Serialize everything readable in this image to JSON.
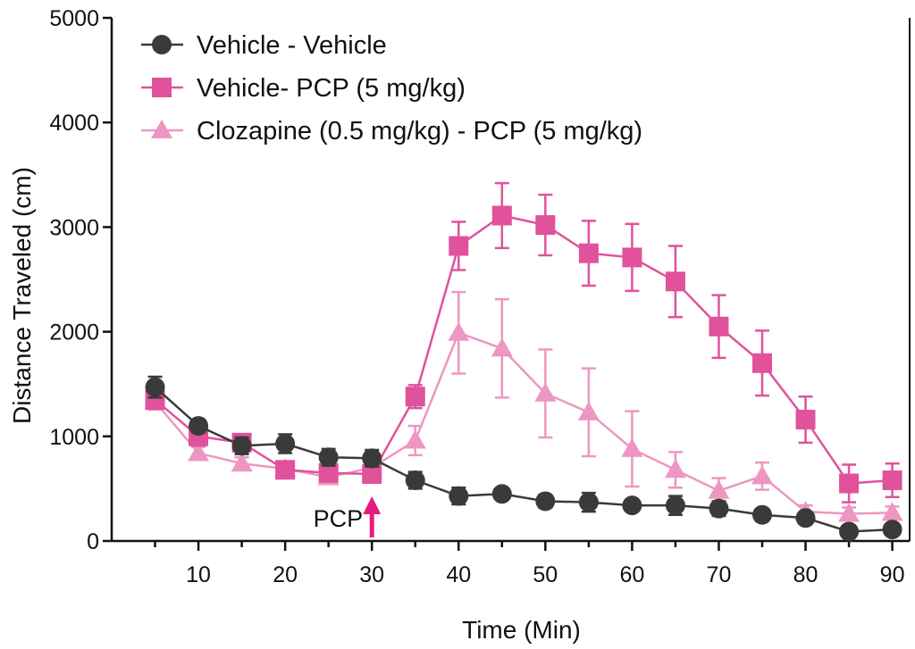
{
  "chart_data": {
    "type": "line",
    "title": "",
    "xlabel": "Time  (Min)",
    "ylabel": "Distance  Traveled  (cm)",
    "xlim": [
      0,
      92
    ],
    "ylim": [
      0,
      5000
    ],
    "x_ticks": [
      10,
      20,
      30,
      40,
      50,
      60,
      70,
      80,
      90
    ],
    "y_ticks": [
      0,
      1000,
      2000,
      3000,
      4000,
      5000
    ],
    "grid": false,
    "legend_position": "top-left",
    "x": [
      5,
      10,
      15,
      20,
      25,
      30,
      35,
      40,
      45,
      50,
      55,
      60,
      65,
      70,
      75,
      80,
      85,
      90
    ],
    "series": [
      {
        "name": "Vehicle - Vehicle",
        "marker": "circle",
        "color": "#3a3a3a",
        "values": [
          1470,
          1100,
          910,
          930,
          800,
          790,
          580,
          430,
          450,
          380,
          370,
          340,
          340,
          310,
          250,
          220,
          90,
          110
        ],
        "errors": [
          100,
          60,
          80,
          90,
          80,
          80,
          80,
          80,
          50,
          60,
          90,
          50,
          90,
          70,
          40,
          50,
          40,
          40
        ]
      },
      {
        "name": "Vehicle- PCP (5 mg/kg)",
        "marker": "square",
        "color": "#e0529c",
        "values": [
          1350,
          1000,
          940,
          680,
          650,
          640,
          1380,
          2820,
          3110,
          3020,
          2750,
          2710,
          2480,
          2050,
          1700,
          1160,
          550,
          580
        ],
        "errors": [
          90,
          90,
          80,
          60,
          60,
          60,
          110,
          230,
          310,
          290,
          310,
          320,
          340,
          300,
          310,
          220,
          180,
          160
        ]
      },
      {
        "name": "Clozapine (0.5 mg/kg) - PCP (5 mg/kg)",
        "marker": "triangle",
        "color": "#ee96c2",
        "values": [
          1330,
          840,
          740,
          690,
          610,
          700,
          960,
          1990,
          1840,
          1410,
          1230,
          880,
          680,
          480,
          620,
          280,
          260,
          270
        ],
        "errors": [
          70,
          60,
          60,
          50,
          50,
          60,
          140,
          390,
          470,
          420,
          420,
          360,
          170,
          120,
          130,
          60,
          60,
          60
        ]
      }
    ],
    "annotations": [
      {
        "text": "PCP",
        "x": 30,
        "color": "#e8197f"
      }
    ]
  }
}
